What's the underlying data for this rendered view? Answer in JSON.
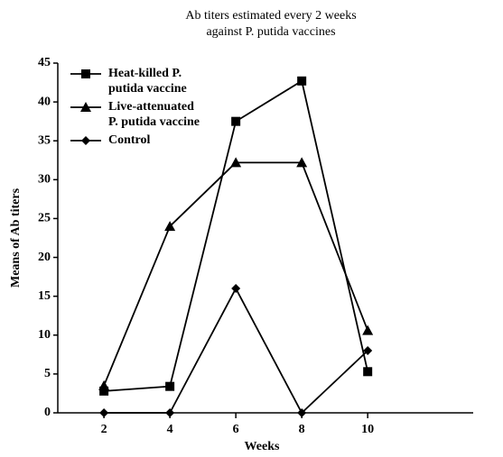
{
  "chart_data": {
    "type": "line",
    "title": "Ab titers estimated every 2 weeks against P. putida vaccines",
    "x_label": "Weeks",
    "y_label": "Means of Ab titers",
    "x": [
      2,
      4,
      6,
      8,
      10
    ],
    "series": [
      {
        "name": "Heat-killed P. putida vaccine",
        "color": "#000000",
        "marker": "square",
        "values": [
          2.8,
          3.4,
          37.5,
          42.7,
          5.3
        ]
      },
      {
        "name": "Live-attenuated P. putida vaccine",
        "color": "#000000",
        "marker": "triangle",
        "values": [
          3.5,
          24,
          32.2,
          32.2,
          10.6
        ]
      },
      {
        "name": "Control",
        "color": "#000000",
        "marker": "diamond",
        "values": [
          0,
          0,
          16,
          0,
          8
        ]
      }
    ],
    "xlim": [
      0.6,
      13.2
    ],
    "xticks": [
      2,
      4,
      6,
      8,
      10
    ],
    "ylim": [
      0,
      45
    ],
    "yticks": [
      0,
      5,
      10,
      15,
      20,
      25,
      30,
      35,
      40,
      45
    ],
    "legend": "upper left",
    "grid": false
  }
}
